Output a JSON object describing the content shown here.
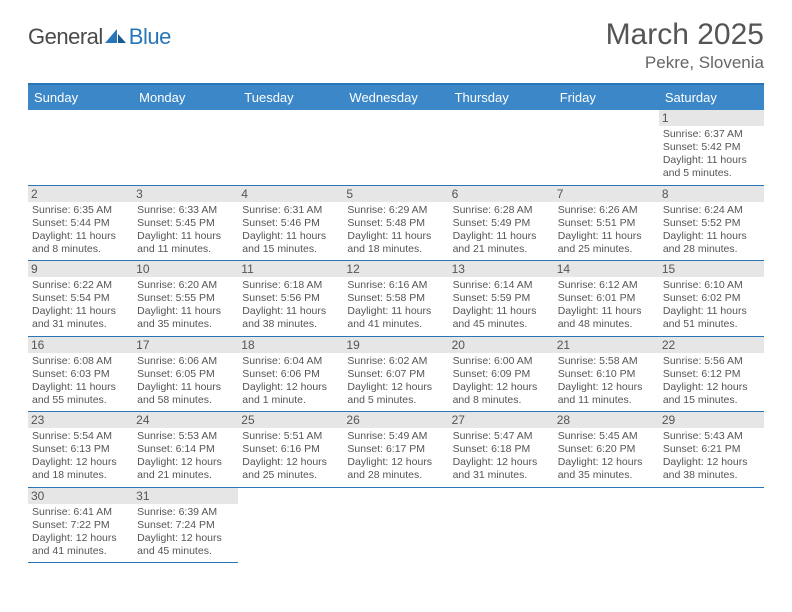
{
  "logo": {
    "word1": "General",
    "word2": "Blue"
  },
  "header": {
    "month": "March 2025",
    "location": "Pekre, Slovenia"
  },
  "colors": {
    "header_bg": "#3b87c8",
    "header_border": "#2876b8",
    "cell_border": "#2876b8",
    "daynum_bg": "#e6e6e6",
    "text": "#555555"
  },
  "weekdays": [
    "Sunday",
    "Monday",
    "Tuesday",
    "Wednesday",
    "Thursday",
    "Friday",
    "Saturday"
  ],
  "first_weekday_index": 6,
  "days": [
    {
      "n": 1,
      "sunrise": "6:37 AM",
      "sunset": "5:42 PM",
      "daylight": "11 hours and 5 minutes."
    },
    {
      "n": 2,
      "sunrise": "6:35 AM",
      "sunset": "5:44 PM",
      "daylight": "11 hours and 8 minutes."
    },
    {
      "n": 3,
      "sunrise": "6:33 AM",
      "sunset": "5:45 PM",
      "daylight": "11 hours and 11 minutes."
    },
    {
      "n": 4,
      "sunrise": "6:31 AM",
      "sunset": "5:46 PM",
      "daylight": "11 hours and 15 minutes."
    },
    {
      "n": 5,
      "sunrise": "6:29 AM",
      "sunset": "5:48 PM",
      "daylight": "11 hours and 18 minutes."
    },
    {
      "n": 6,
      "sunrise": "6:28 AM",
      "sunset": "5:49 PM",
      "daylight": "11 hours and 21 minutes."
    },
    {
      "n": 7,
      "sunrise": "6:26 AM",
      "sunset": "5:51 PM",
      "daylight": "11 hours and 25 minutes."
    },
    {
      "n": 8,
      "sunrise": "6:24 AM",
      "sunset": "5:52 PM",
      "daylight": "11 hours and 28 minutes."
    },
    {
      "n": 9,
      "sunrise": "6:22 AM",
      "sunset": "5:54 PM",
      "daylight": "11 hours and 31 minutes."
    },
    {
      "n": 10,
      "sunrise": "6:20 AM",
      "sunset": "5:55 PM",
      "daylight": "11 hours and 35 minutes."
    },
    {
      "n": 11,
      "sunrise": "6:18 AM",
      "sunset": "5:56 PM",
      "daylight": "11 hours and 38 minutes."
    },
    {
      "n": 12,
      "sunrise": "6:16 AM",
      "sunset": "5:58 PM",
      "daylight": "11 hours and 41 minutes."
    },
    {
      "n": 13,
      "sunrise": "6:14 AM",
      "sunset": "5:59 PM",
      "daylight": "11 hours and 45 minutes."
    },
    {
      "n": 14,
      "sunrise": "6:12 AM",
      "sunset": "6:01 PM",
      "daylight": "11 hours and 48 minutes."
    },
    {
      "n": 15,
      "sunrise": "6:10 AM",
      "sunset": "6:02 PM",
      "daylight": "11 hours and 51 minutes."
    },
    {
      "n": 16,
      "sunrise": "6:08 AM",
      "sunset": "6:03 PM",
      "daylight": "11 hours and 55 minutes."
    },
    {
      "n": 17,
      "sunrise": "6:06 AM",
      "sunset": "6:05 PM",
      "daylight": "11 hours and 58 minutes."
    },
    {
      "n": 18,
      "sunrise": "6:04 AM",
      "sunset": "6:06 PM",
      "daylight": "12 hours and 1 minute."
    },
    {
      "n": 19,
      "sunrise": "6:02 AM",
      "sunset": "6:07 PM",
      "daylight": "12 hours and 5 minutes."
    },
    {
      "n": 20,
      "sunrise": "6:00 AM",
      "sunset": "6:09 PM",
      "daylight": "12 hours and 8 minutes."
    },
    {
      "n": 21,
      "sunrise": "5:58 AM",
      "sunset": "6:10 PM",
      "daylight": "12 hours and 11 minutes."
    },
    {
      "n": 22,
      "sunrise": "5:56 AM",
      "sunset": "6:12 PM",
      "daylight": "12 hours and 15 minutes."
    },
    {
      "n": 23,
      "sunrise": "5:54 AM",
      "sunset": "6:13 PM",
      "daylight": "12 hours and 18 minutes."
    },
    {
      "n": 24,
      "sunrise": "5:53 AM",
      "sunset": "6:14 PM",
      "daylight": "12 hours and 21 minutes."
    },
    {
      "n": 25,
      "sunrise": "5:51 AM",
      "sunset": "6:16 PM",
      "daylight": "12 hours and 25 minutes."
    },
    {
      "n": 26,
      "sunrise": "5:49 AM",
      "sunset": "6:17 PM",
      "daylight": "12 hours and 28 minutes."
    },
    {
      "n": 27,
      "sunrise": "5:47 AM",
      "sunset": "6:18 PM",
      "daylight": "12 hours and 31 minutes."
    },
    {
      "n": 28,
      "sunrise": "5:45 AM",
      "sunset": "6:20 PM",
      "daylight": "12 hours and 35 minutes."
    },
    {
      "n": 29,
      "sunrise": "5:43 AM",
      "sunset": "6:21 PM",
      "daylight": "12 hours and 38 minutes."
    },
    {
      "n": 30,
      "sunrise": "6:41 AM",
      "sunset": "7:22 PM",
      "daylight": "12 hours and 41 minutes."
    },
    {
      "n": 31,
      "sunrise": "6:39 AM",
      "sunset": "7:24 PM",
      "daylight": "12 hours and 45 minutes."
    }
  ],
  "labels": {
    "sunrise": "Sunrise:",
    "sunset": "Sunset:",
    "daylight": "Daylight:"
  }
}
